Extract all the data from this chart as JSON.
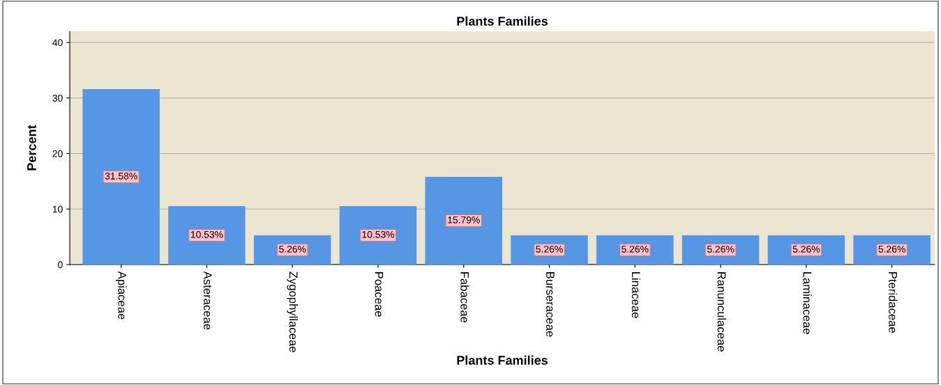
{
  "chart_data": {
    "type": "bar",
    "title": "Plants Families",
    "xlabel": "Plants Families",
    "ylabel": "Percent",
    "categories": [
      "Apiaceae",
      "Asteraceae",
      "Zygophyllaceae",
      "Poaceae",
      "Fabaceae",
      "Burseraceae",
      "Linaceae",
      "Ranunculaceae",
      "Laminaceae",
      "Pteridaceae"
    ],
    "values": [
      31.58,
      10.53,
      5.26,
      10.53,
      15.79,
      5.26,
      5.26,
      5.26,
      5.26,
      5.26
    ],
    "value_labels": [
      "31.58%",
      "10.53%",
      "5.26%",
      "10.53%",
      "15.79%",
      "5.26%",
      "5.26%",
      "5.26%",
      "5.26%",
      "5.26%"
    ],
    "color": "#5597e4",
    "ylim": [
      0,
      42
    ],
    "yticks": [
      0,
      10,
      20,
      30,
      40
    ],
    "grid": "y",
    "legend": false
  }
}
